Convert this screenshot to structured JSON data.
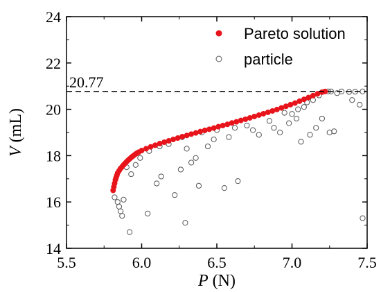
{
  "chart_data": {
    "type": "scatter",
    "xlabel": {
      "italic": "P",
      "rest": " (N)"
    },
    "ylabel": {
      "italic": "V",
      "rest": " (mL)"
    },
    "xlim": [
      5.5,
      7.5
    ],
    "ylim": [
      14,
      24
    ],
    "xticks": [
      "5.5",
      "6.0",
      "6.5",
      "7.0",
      "7.5"
    ],
    "yticks": [
      "14",
      "16",
      "18",
      "20",
      "22",
      "24"
    ],
    "grid": false,
    "legend_position": "top-right",
    "annotation": {
      "text": "20.77",
      "y": 20.77
    },
    "series": [
      {
        "name": "Pareto solution",
        "marker": "filled-circle",
        "color": "#e8141b",
        "points": [
          [
            5.81,
            16.5
          ],
          [
            5.815,
            16.65
          ],
          [
            5.82,
            16.8
          ],
          [
            5.825,
            16.95
          ],
          [
            5.83,
            17.05
          ],
          [
            5.835,
            17.15
          ],
          [
            5.84,
            17.25
          ],
          [
            5.85,
            17.35
          ],
          [
            5.86,
            17.45
          ],
          [
            5.87,
            17.52
          ],
          [
            5.88,
            17.6
          ],
          [
            5.89,
            17.67
          ],
          [
            5.9,
            17.74
          ],
          [
            5.91,
            17.8
          ],
          [
            5.92,
            17.86
          ],
          [
            5.93,
            17.92
          ],
          [
            5.94,
            17.97
          ],
          [
            5.95,
            18.02
          ],
          [
            5.96,
            18.07
          ],
          [
            5.97,
            18.11
          ],
          [
            5.98,
            18.15
          ],
          [
            6.0,
            18.22
          ],
          [
            6.03,
            18.3
          ],
          [
            6.06,
            18.38
          ],
          [
            6.09,
            18.45
          ],
          [
            6.12,
            18.52
          ],
          [
            6.15,
            18.58
          ],
          [
            6.18,
            18.64
          ],
          [
            6.21,
            18.7
          ],
          [
            6.24,
            18.76
          ],
          [
            6.27,
            18.82
          ],
          [
            6.3,
            18.87
          ],
          [
            6.33,
            18.93
          ],
          [
            6.36,
            18.98
          ],
          [
            6.39,
            19.04
          ],
          [
            6.42,
            19.09
          ],
          [
            6.45,
            19.14
          ],
          [
            6.48,
            19.19
          ],
          [
            6.51,
            19.25
          ],
          [
            6.54,
            19.3
          ],
          [
            6.57,
            19.35
          ],
          [
            6.6,
            19.41
          ],
          [
            6.63,
            19.46
          ],
          [
            6.66,
            19.52
          ],
          [
            6.69,
            19.57
          ],
          [
            6.72,
            19.63
          ],
          [
            6.75,
            19.69
          ],
          [
            6.78,
            19.75
          ],
          [
            6.81,
            19.81
          ],
          [
            6.84,
            19.87
          ],
          [
            6.87,
            19.93
          ],
          [
            6.9,
            19.99
          ],
          [
            6.93,
            20.06
          ],
          [
            6.96,
            20.13
          ],
          [
            6.99,
            20.2
          ],
          [
            7.02,
            20.27
          ],
          [
            7.05,
            20.35
          ],
          [
            7.08,
            20.43
          ],
          [
            7.11,
            20.51
          ],
          [
            7.14,
            20.59
          ],
          [
            7.17,
            20.67
          ],
          [
            7.2,
            20.74
          ],
          [
            7.22,
            20.77
          ]
        ]
      },
      {
        "name": "particle",
        "marker": "open-circle",
        "color": "#555555",
        "points": [
          [
            5.82,
            16.2
          ],
          [
            5.84,
            16.0
          ],
          [
            5.86,
            15.6
          ],
          [
            5.87,
            15.4
          ],
          [
            5.88,
            16.1
          ],
          [
            5.85,
            15.8
          ],
          [
            5.9,
            17.5
          ],
          [
            5.93,
            17.2
          ],
          [
            5.96,
            17.6
          ],
          [
            5.99,
            17.9
          ],
          [
            5.92,
            14.7
          ],
          [
            6.04,
            15.5
          ],
          [
            6.1,
            16.8
          ],
          [
            6.13,
            17.1
          ],
          [
            6.22,
            16.3
          ],
          [
            6.29,
            15.1
          ],
          [
            6.26,
            17.4
          ],
          [
            6.33,
            17.7
          ],
          [
            6.36,
            17.9
          ],
          [
            6.38,
            16.7
          ],
          [
            6.55,
            16.6
          ],
          [
            6.64,
            16.9
          ],
          [
            6.7,
            19.3
          ],
          [
            6.74,
            19.1
          ],
          [
            6.78,
            18.9
          ],
          [
            6.85,
            19.5
          ],
          [
            6.88,
            19.2
          ],
          [
            6.92,
            19.0
          ],
          [
            6.98,
            19.4
          ],
          [
            7.03,
            19.6
          ],
          [
            7.06,
            18.6
          ],
          [
            7.12,
            18.9
          ],
          [
            7.16,
            19.2
          ],
          [
            7.2,
            19.6
          ],
          [
            7.25,
            19.0
          ],
          [
            7.28,
            19.05
          ],
          [
            7.3,
            20.7
          ],
          [
            7.38,
            20.75
          ],
          [
            7.42,
            20.76
          ],
          [
            7.47,
            20.77
          ],
          [
            7.4,
            20.4
          ],
          [
            7.45,
            20.2
          ],
          [
            7.47,
            15.3
          ],
          [
            6.05,
            18.2
          ],
          [
            6.18,
            18.5
          ],
          [
            6.27,
            18.8
          ],
          [
            6.4,
            19.0
          ],
          [
            6.44,
            18.4
          ],
          [
            6.5,
            19.1
          ],
          [
            6.58,
            18.8
          ],
          [
            6.62,
            19.2
          ],
          [
            7.1,
            20.3
          ],
          [
            7.14,
            20.4
          ],
          [
            7.08,
            20.1
          ],
          [
            7.0,
            19.8
          ],
          [
            6.95,
            19.85
          ],
          [
            7.18,
            20.6
          ],
          [
            7.24,
            20.77
          ],
          [
            7.26,
            20.77
          ],
          [
            7.33,
            20.77
          ],
          [
            6.12,
            18.4
          ],
          [
            6.3,
            18.3
          ],
          [
            6.48,
            18.7
          ],
          [
            7.04,
            20.0
          ]
        ]
      }
    ]
  }
}
